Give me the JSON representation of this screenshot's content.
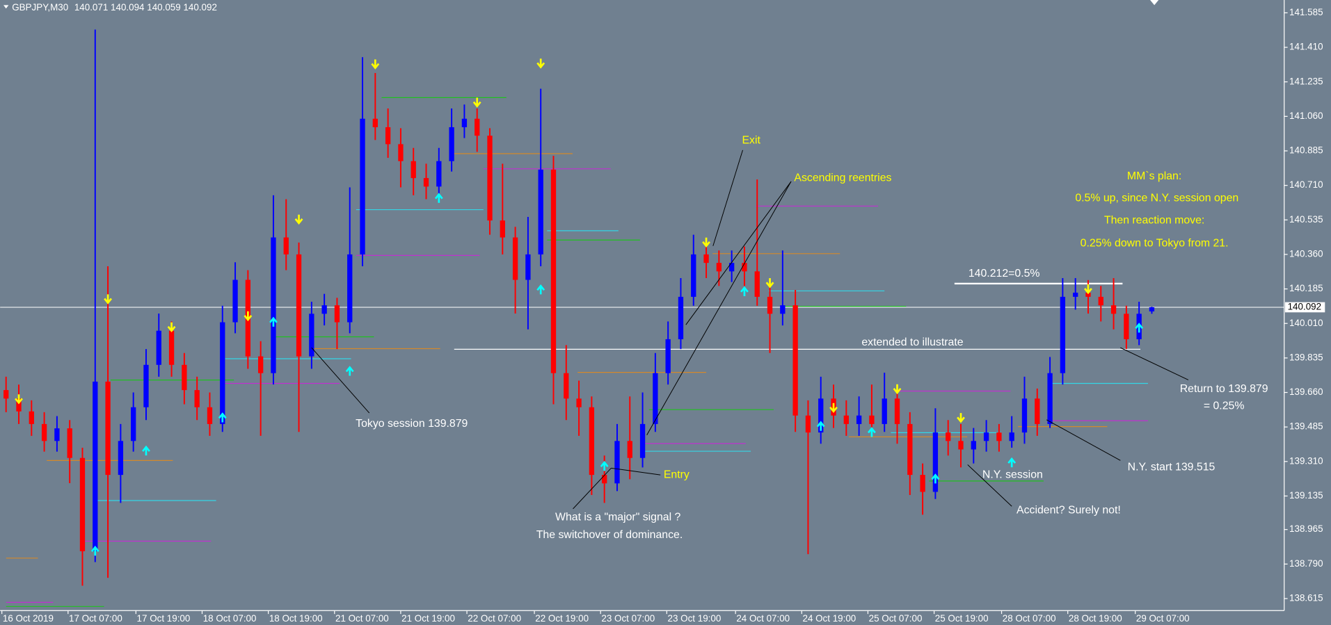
{
  "chart_data": {
    "type": "ohlc",
    "symbol": "GBPJPY,M30",
    "up_color": "#0000ff",
    "down_color": "#ff0000",
    "open": [
      139.672,
      139.629,
      139.564,
      139.5,
      139.414,
      139.478,
      139.328,
      138.855,
      139.715,
      139.242,
      139.414,
      139.585,
      139.8,
      139.973,
      139.8,
      139.672,
      139.585,
      139.5,
      140.016,
      140.231,
      139.843,
      139.758,
      140.446,
      140.36,
      139.843,
      140.059,
      140.102,
      140.016,
      140.36,
      141.048,
      141.005,
      140.919,
      140.833,
      140.747,
      140.704,
      140.833,
      141.005,
      141.048,
      140.962,
      140.532,
      140.446,
      140.231,
      140.36,
      140.79,
      139.758,
      139.629,
      139.585,
      139.242,
      139.199,
      139.414,
      139.328,
      139.5,
      139.758,
      139.93,
      140.145,
      140.36,
      140.317,
      140.274,
      140.317,
      140.274,
      140.145,
      140.059,
      140.102,
      139.543,
      139.457,
      139.629,
      139.543,
      139.5,
      139.543,
      139.5,
      139.629,
      139.5,
      139.242,
      139.156,
      139.457,
      139.414,
      139.371,
      139.414,
      139.457,
      139.414,
      139.457,
      139.629,
      139.5,
      139.758,
      140.145,
      140.166,
      140.145,
      140.102,
      140.059,
      139.93,
      140.071
    ],
    "high": [
      139.74,
      139.7,
      139.62,
      139.56,
      139.54,
      139.52,
      139.38,
      141.5,
      140.3,
      139.5,
      139.66,
      139.88,
      140.06,
      140.02,
      139.86,
      139.74,
      139.66,
      140.1,
      140.32,
      140.28,
      139.92,
      140.66,
      140.64,
      140.42,
      140.12,
      140.16,
      140.14,
      140.7,
      141.36,
      141.28,
      141.1,
      141,
      140.9,
      140.82,
      140.9,
      141.1,
      141.12,
      141.1,
      141,
      140.82,
      140.5,
      140.55,
      141.2,
      140.86,
      139.9,
      139.72,
      139.64,
      139.34,
      139.5,
      139.64,
      139.66,
      139.86,
      140.02,
      140.24,
      140.46,
      140.42,
      140.38,
      140.38,
      140.4,
      140.74,
      140.22,
      140.38,
      140.18,
      139.62,
      139.74,
      139.7,
      139.62,
      139.64,
      139.7,
      139.76,
      139.7,
      139.56,
      139.3,
      139.58,
      139.52,
      139.5,
      139.48,
      139.52,
      139.5,
      139.54,
      139.74,
      139.68,
      139.84,
      140.24,
      140.24,
      140.23,
      140.2,
      140.24,
      140.1,
      140.12,
      140.094
    ],
    "low": [
      139.56,
      139.5,
      139.44,
      139.36,
      139.36,
      139.2,
      138.68,
      138.8,
      138.72,
      139.1,
      139.36,
      139.52,
      139.74,
      139.74,
      139.6,
      139.52,
      139.44,
      139.46,
      139.96,
      139.78,
      139.44,
      139.7,
      140.28,
      139.46,
      139.78,
      140,
      139.88,
      139.96,
      140.3,
      140.94,
      140.85,
      140.7,
      140.66,
      140.64,
      140.64,
      140.78,
      140.95,
      140.88,
      140.46,
      140.36,
      140.06,
      139.98,
      140.3,
      139.6,
      139.52,
      139.44,
      139.14,
      139.1,
      139.16,
      139.22,
      139.28,
      139.46,
      139.7,
      139.88,
      140.1,
      140.24,
      140.2,
      140.22,
      140.2,
      140.1,
      139.86,
      140,
      139.46,
      138.84,
      139.4,
      139.48,
      139.44,
      139.44,
      139.44,
      139.46,
      139.4,
      139.14,
      139.04,
      139.12,
      139.34,
      139.28,
      139.3,
      139.36,
      139.36,
      139.38,
      139.4,
      139.44,
      139.48,
      139.7,
      140.08,
      140.06,
      140.02,
      139.98,
      139.88,
      139.9,
      140.059
    ],
    "close": [
      139.629,
      139.564,
      139.5,
      139.414,
      139.478,
      139.328,
      138.855,
      139.715,
      139.242,
      139.414,
      139.585,
      139.8,
      139.973,
      139.8,
      139.672,
      139.585,
      139.5,
      140.016,
      140.231,
      139.843,
      139.758,
      140.446,
      140.36,
      139.843,
      140.059,
      140.102,
      140.016,
      140.36,
      141.048,
      141.005,
      140.919,
      140.833,
      140.747,
      140.704,
      140.833,
      141.005,
      141.048,
      140.962,
      140.532,
      140.446,
      140.231,
      140.36,
      140.79,
      139.758,
      139.629,
      139.585,
      139.242,
      139.199,
      139.414,
      139.328,
      139.5,
      139.758,
      139.93,
      140.145,
      140.36,
      140.317,
      140.274,
      140.317,
      140.274,
      140.145,
      140.059,
      140.102,
      139.543,
      139.457,
      139.629,
      139.543,
      139.5,
      139.543,
      139.5,
      139.629,
      139.5,
      139.242,
      139.156,
      139.457,
      139.414,
      139.371,
      139.414,
      139.457,
      139.414,
      139.457,
      139.629,
      139.5,
      139.758,
      140.145,
      140.166,
      140.145,
      140.102,
      140.059,
      139.93,
      140.059,
      140.092
    ],
    "xlim": [
      -0.467,
      100.4
    ],
    "ylim": [
      138.554,
      141.65
    ],
    "yticks": [
      {
        "value": 141.585,
        "label": "141.585"
      },
      {
        "value": 141.41,
        "label": "141.410"
      },
      {
        "value": 141.235,
        "label": "141.235"
      },
      {
        "value": 141.06,
        "label": "141.060"
      },
      {
        "value": 140.885,
        "label": "140.885"
      },
      {
        "value": 140.71,
        "label": "140.710"
      },
      {
        "value": 140.535,
        "label": "140.535"
      },
      {
        "value": 140.36,
        "label": "140.360"
      },
      {
        "value": 140.185,
        "label": "140.185"
      },
      {
        "value": 140.01,
        "label": "140.010"
      },
      {
        "value": 139.835,
        "label": "139.835"
      },
      {
        "value": 139.66,
        "label": "139.660"
      },
      {
        "value": 139.485,
        "label": "139.485"
      },
      {
        "value": 139.31,
        "label": "139.310"
      },
      {
        "value": 139.135,
        "label": "139.135"
      },
      {
        "value": 138.965,
        "label": "138.965"
      },
      {
        "value": 138.79,
        "label": "138.790"
      },
      {
        "value": 138.615,
        "label": "138.615"
      }
    ],
    "xticks": [
      {
        "value": -0.33,
        "label": "16 Oct 2019"
      },
      {
        "value": 4.87,
        "label": "17 Oct 07:00"
      },
      {
        "value": 10.2,
        "label": "17 Oct 19:00"
      },
      {
        "value": 15.4,
        "label": "18 Oct 07:00"
      },
      {
        "value": 20.6,
        "label": "18 Oct 19:00"
      },
      {
        "value": 25.8,
        "label": "21 Oct 07:00"
      },
      {
        "value": 31,
        "label": "21 Oct 19:00"
      },
      {
        "value": 36.2,
        "label": "22 Oct 07:00"
      },
      {
        "value": 41.5,
        "label": "22 Oct 19:00"
      },
      {
        "value": 46.7,
        "label": "23 Oct 07:00"
      },
      {
        "value": 51.9,
        "label": "23 Oct 19:00"
      },
      {
        "value": 57.3,
        "label": "24 Oct 07:00"
      },
      {
        "value": 62.5,
        "label": "24 Oct 19:00"
      },
      {
        "value": 67.7,
        "label": "25 Oct 07:00"
      },
      {
        "value": 72.9,
        "label": "25 Oct 19:00"
      },
      {
        "value": 78.2,
        "label": "28 Oct 07:00"
      },
      {
        "value": 83.4,
        "label": "28 Oct 19:00"
      },
      {
        "value": 88.7,
        "label": "29 Oct 07:00"
      }
    ],
    "levels": [
      {
        "value": 138.82,
        "from": 0,
        "to": 2.5,
        "color": "#d4892b"
      },
      {
        "value": 138.596,
        "from": 0,
        "to": 3.7,
        "color": "#c030d0"
      },
      {
        "value": 138.575,
        "from": 0,
        "to": 7.7,
        "color": "#20c020"
      },
      {
        "value": 139.315,
        "from": 3.2,
        "to": 13.1,
        "color": "#d4892b"
      },
      {
        "value": 139.112,
        "from": 6.9,
        "to": 16.5,
        "color": "#33d6e6"
      },
      {
        "value": 138.906,
        "from": 6.2,
        "to": 16.1,
        "color": "#c030d0"
      },
      {
        "value": 139.723,
        "from": 8.2,
        "to": 17.9,
        "color": "#20c020"
      },
      {
        "value": 139.831,
        "from": 17.2,
        "to": 27.1,
        "color": "#33d6e6"
      },
      {
        "value": 139.942,
        "from": 20.9,
        "to": 28.9,
        "color": "#20c020"
      },
      {
        "value": 139.706,
        "from": 16.9,
        "to": 26.2,
        "color": "#c030d0"
      },
      {
        "value": 139.882,
        "from": 24.2,
        "to": 34.1,
        "color": "#d4892b"
      },
      {
        "value": 140.587,
        "from": 27.5,
        "to": 37.5,
        "color": "#33d6e6"
      },
      {
        "value": 140.355,
        "from": 27.5,
        "to": 37.2,
        "color": "#c030d0"
      },
      {
        "value": 141.155,
        "from": 29.5,
        "to": 39.3,
        "color": "#20c020"
      },
      {
        "value": 140.871,
        "from": 34.9,
        "to": 44.5,
        "color": "#d4892b"
      },
      {
        "value": 140.794,
        "from": 37.5,
        "to": 47.5,
        "color": "#c030d0"
      },
      {
        "value": 140.48,
        "from": 42.5,
        "to": 48.1,
        "color": "#33d6e6"
      },
      {
        "value": 140.433,
        "from": 42.5,
        "to": 49.8,
        "color": "#20c020"
      },
      {
        "value": 139.762,
        "from": 44.9,
        "to": 55,
        "color": "#d4892b"
      },
      {
        "value": 139.573,
        "from": 50.5,
        "to": 60.3,
        "color": "#20c020"
      },
      {
        "value": 139.401,
        "from": 50,
        "to": 58.1,
        "color": "#c030d0"
      },
      {
        "value": 139.362,
        "from": 50,
        "to": 58.5,
        "color": "#33d6e6"
      },
      {
        "value": 140.605,
        "from": 58.9,
        "to": 68.5,
        "color": "#c030d0"
      },
      {
        "value": 140.364,
        "from": 55.5,
        "to": 65.5,
        "color": "#d4892b"
      },
      {
        "value": 140.175,
        "from": 59.9,
        "to": 69,
        "color": "#33d6e6"
      },
      {
        "value": 140.097,
        "from": 61.2,
        "to": 70.7,
        "color": "#20c020"
      },
      {
        "value": 139.667,
        "from": 69.9,
        "to": 78.9,
        "color": "#c030d0"
      },
      {
        "value": 139.456,
        "from": 69.5,
        "to": 78.2,
        "color": "#33d6e6"
      },
      {
        "value": 139.435,
        "from": 66.2,
        "to": 75.5,
        "color": "#d4892b"
      },
      {
        "value": 139.211,
        "from": 72.5,
        "to": 81.5,
        "color": "#20c020"
      },
      {
        "value": 139.706,
        "from": 81.9,
        "to": 89.7,
        "color": "#33d6e6"
      },
      {
        "value": 139.517,
        "from": 81.9,
        "to": 89.7,
        "color": "#c030d0"
      },
      {
        "value": 139.487,
        "from": 79.5,
        "to": 86.5,
        "color": "#d4892b"
      }
    ],
    "price_lines": [
      {
        "value": 139.879,
        "from": 35.2,
        "to": 89.1
      },
      {
        "value": 140.212,
        "from": 74.5,
        "to": 87.7
      }
    ],
    "signal_colors": {
      "down": "#ffff00",
      "up": "#00ffff"
    },
    "signals": [
      {
        "bar": 1,
        "value": 139.629,
        "dir": "down"
      },
      {
        "bar": 8,
        "value": 140.136,
        "dir": "down"
      },
      {
        "bar": 13,
        "value": 139.994,
        "dir": "down"
      },
      {
        "bar": 19,
        "value": 140.05,
        "dir": "down"
      },
      {
        "bar": 23,
        "value": 140.54,
        "dir": "down"
      },
      {
        "bar": 29,
        "value": 141.327,
        "dir": "down"
      },
      {
        "bar": 37,
        "value": 141.133,
        "dir": "down"
      },
      {
        "bar": 42,
        "value": 141.331,
        "dir": "down"
      },
      {
        "bar": 55,
        "value": 140.424,
        "dir": "down"
      },
      {
        "bar": 60,
        "value": 140.218,
        "dir": "down"
      },
      {
        "bar": 65,
        "value": 139.585,
        "dir": "down"
      },
      {
        "bar": 70,
        "value": 139.68,
        "dir": "down"
      },
      {
        "bar": 75,
        "value": 139.534,
        "dir": "down"
      },
      {
        "bar": 85,
        "value": 140.187,
        "dir": "down"
      },
      {
        "bar": 7,
        "value": 138.854,
        "dir": "up"
      },
      {
        "bar": 11,
        "value": 139.362,
        "dir": "up"
      },
      {
        "bar": 17,
        "value": 139.53,
        "dir": "up"
      },
      {
        "bar": 21,
        "value": 140.015,
        "dir": "up"
      },
      {
        "bar": 27,
        "value": 139.766,
        "dir": "up"
      },
      {
        "bar": 34,
        "value": 140.643,
        "dir": "up"
      },
      {
        "bar": 42,
        "value": 140.179,
        "dir": "up"
      },
      {
        "bar": 47,
        "value": 139.284,
        "dir": "up"
      },
      {
        "bar": 58,
        "value": 140.17,
        "dir": "up"
      },
      {
        "bar": 64,
        "value": 139.487,
        "dir": "up"
      },
      {
        "bar": 68,
        "value": 139.456,
        "dir": "up"
      },
      {
        "bar": 73,
        "value": 139.22,
        "dir": "up"
      },
      {
        "bar": 79,
        "value": 139.302,
        "dir": "up"
      },
      {
        "bar": 89,
        "value": 139.985,
        "dir": "up"
      }
    ],
    "annotations": [
      "Tokyo session 139.879",
      "Entry",
      "Exit",
      "Ascending reentries",
      "What is a \"major\" signal ?",
      "The switchover of dominance.",
      "extended to illustrate",
      "140.212=0.5%",
      "N.Y. session",
      "Accident? Surely not!",
      "N.Y. start 139.515",
      "Return to 139.879",
      "= 0.25%",
      "MM`s plan:",
      "0.5% up, since N.Y. session open",
      "Then reaction move:",
      "0.25% down to Tokyo from 21."
    ]
  }
}
